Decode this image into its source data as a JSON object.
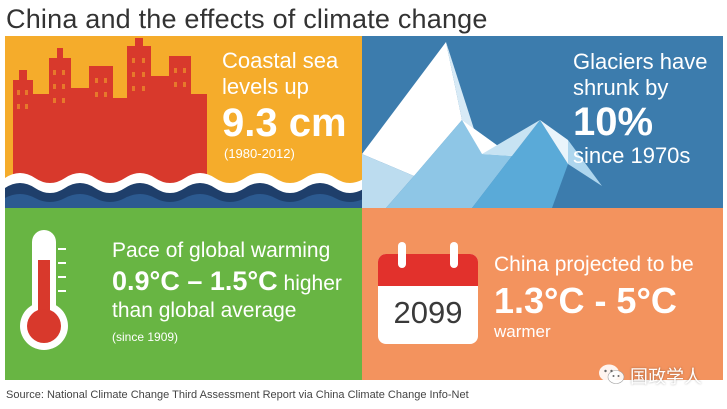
{
  "title": "China and the effects of climate change",
  "colors": {
    "coastal": "#f5ac2b",
    "glacier": "#3c7cad",
    "warming": "#68b543",
    "china": "#f3935e",
    "city": "#d8392c",
    "calendar_red": "#e2312c"
  },
  "coastal": {
    "line1": "Coastal sea",
    "line2": "levels up",
    "value": "9.3 cm",
    "period": "(1980-2012)"
  },
  "glacier": {
    "line1": "Glaciers have",
    "line2": "shrunk by",
    "value": "10%",
    "line4": "since 1970s"
  },
  "warming": {
    "line1": "Pace of global warming",
    "value": "0.9°C – 1.5°C",
    "value_suffix": " higher",
    "line3": "than global average",
    "period": "(since 1909)"
  },
  "china": {
    "line1": "China projected to be",
    "value": "1.3°C - 5°C",
    "line3": "warmer",
    "calendar_year": "2099"
  },
  "source": "Source: National Climate Change Third Assessment Report via China Climate Change Info-Net",
  "watermark": {
    "icon": "wechat-icon",
    "text": "国政学人"
  }
}
